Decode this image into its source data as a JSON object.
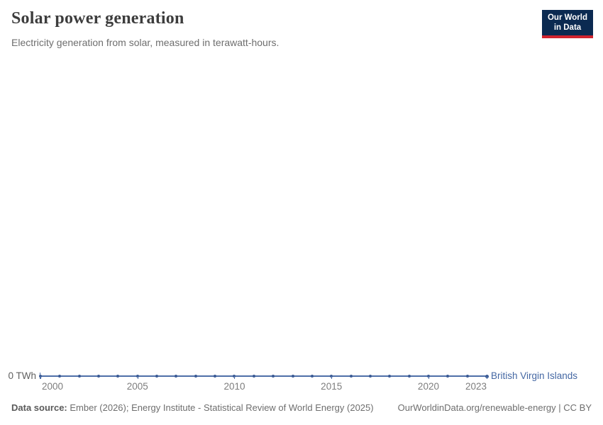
{
  "header": {
    "title": "Solar power generation",
    "subtitle": "Electricity generation from solar, measured in terawatt-hours."
  },
  "logo": {
    "line1": "Our World",
    "line2": "in Data",
    "bg_color": "#0b2a51",
    "accent_color": "#d0232e"
  },
  "footer": {
    "source_label": "Data source:",
    "source_text": "Ember (2026); Energy Institute - Statistical Review of World Energy (2025)",
    "link_text": "OurWorldinData.org/renewable-energy | CC BY"
  },
  "chart_data": {
    "type": "line",
    "title": "Solar power generation",
    "subtitle": "Electricity generation from solar, measured in terawatt-hours.",
    "xlabel": "",
    "ylabel": "TWh",
    "y_axis_label": "0 TWh",
    "x_range": [
      2000,
      2023
    ],
    "ylim": [
      0,
      0
    ],
    "grid": false,
    "legend_position": "end-of-line",
    "x_ticks": [
      "2000",
      "2005",
      "2010",
      "2015",
      "2020",
      "2023"
    ],
    "series": [
      {
        "name": "British Virgin Islands",
        "color": "#4467a3",
        "x": [
          2000,
          2001,
          2002,
          2003,
          2004,
          2005,
          2006,
          2007,
          2008,
          2009,
          2010,
          2011,
          2012,
          2013,
          2014,
          2015,
          2016,
          2017,
          2018,
          2019,
          2020,
          2021,
          2022,
          2023
        ],
        "values": [
          0,
          0,
          0,
          0,
          0,
          0,
          0,
          0,
          0,
          0,
          0,
          0,
          0,
          0,
          0,
          0,
          0,
          0,
          0,
          0,
          0,
          0,
          0,
          0
        ]
      }
    ]
  }
}
